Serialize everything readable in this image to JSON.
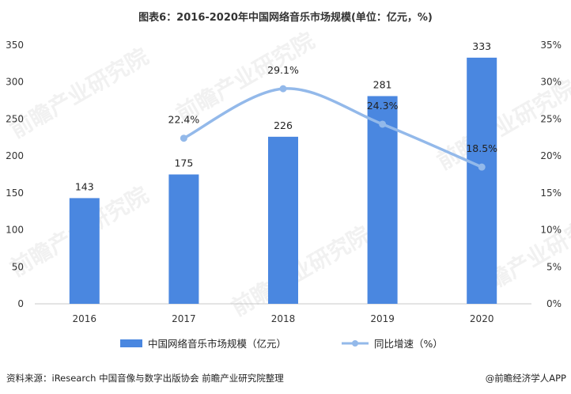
{
  "title": "图表6：2016-2020年中国网络音乐市场规模(单位：亿元，%)",
  "footer": {
    "source": "资料来源：iResearch 中国音像与数字出版协会 前瞻产业研究院整理",
    "brand": "@前瞻经济学人APP"
  },
  "watermark_text": "前瞻产业研究院",
  "colors": {
    "bar": "#4a87e0",
    "line": "#93b9ea",
    "marker": "#93b9ea",
    "axis": "#c8c8c8",
    "watermark": "#f0f0f0"
  },
  "chart_data": {
    "type": "bar",
    "categories": [
      "2016",
      "2017",
      "2018",
      "2019",
      "2020"
    ],
    "series": [
      {
        "name": "中国网络音乐市场规模（亿元）",
        "type": "bar",
        "axis": "left",
        "values": [
          143,
          175,
          226,
          281,
          333
        ],
        "labels": [
          "143",
          "175",
          "226",
          "281",
          "333"
        ]
      },
      {
        "name": "同比增速（%）",
        "type": "line",
        "axis": "right",
        "smooth": true,
        "values": [
          null,
          22.4,
          29.1,
          24.3,
          18.5
        ],
        "labels": [
          "",
          "22.4%",
          "29.1%",
          "24.3%",
          "18.5%"
        ]
      }
    ],
    "left_axis": {
      "range": [
        0,
        350
      ],
      "ticks": [
        "0",
        "50",
        "100",
        "150",
        "200",
        "250",
        "300",
        "350"
      ]
    },
    "right_axis": {
      "range": [
        0,
        35
      ],
      "ticks": [
        "0%",
        "5%",
        "10%",
        "15%",
        "20%",
        "25%",
        "30%",
        "35%"
      ]
    },
    "legend": [
      "中国网络音乐市场规模（亿元）",
      "同比增速（%）"
    ],
    "legend_position": "bottom",
    "grid": false
  }
}
